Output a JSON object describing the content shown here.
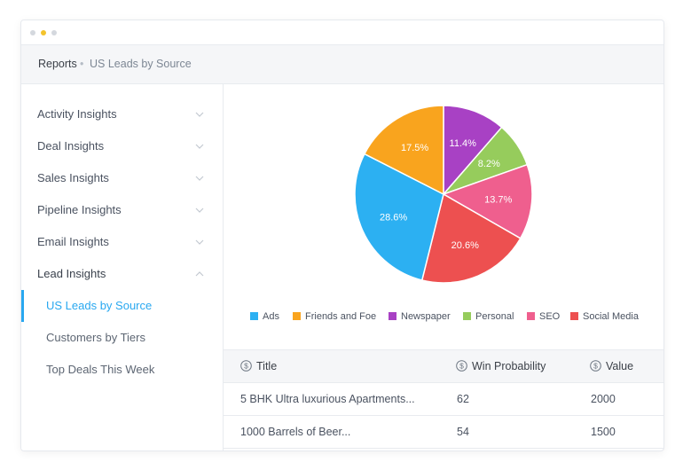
{
  "window": {
    "dot_colors": [
      "#d4d8de",
      "#f3c32c",
      "#d4d8de"
    ]
  },
  "breadcrumb": {
    "root": "Reports",
    "separator": "•",
    "current": "US Leads by Source"
  },
  "sidebar": {
    "items": [
      {
        "label": "Activity Insights",
        "expanded": false
      },
      {
        "label": "Deal Insights",
        "expanded": false
      },
      {
        "label": "Sales Insights",
        "expanded": false
      },
      {
        "label": "Pipeline Insights",
        "expanded": false
      },
      {
        "label": "Email Insights",
        "expanded": false
      },
      {
        "label": "Lead Insights",
        "expanded": true
      }
    ],
    "subitems": [
      {
        "label": "US Leads by Source",
        "active": true
      },
      {
        "label": "Customers by Tiers",
        "active": false
      },
      {
        "label": "Top Deals This Week",
        "active": false
      }
    ],
    "active_color": "#29a8f0"
  },
  "chart_data": {
    "type": "pie",
    "title": "",
    "slices": [
      {
        "label": "Newspaper",
        "value": 11.4,
        "color": "#a841c4"
      },
      {
        "label": "Personal",
        "value": 8.2,
        "color": "#96cc5c"
      },
      {
        "label": "SEO",
        "value": 13.7,
        "color": "#ef5f8e"
      },
      {
        "label": "Social Media",
        "value": 20.6,
        "color": "#ed5050"
      },
      {
        "label": "Ads",
        "value": 28.6,
        "color": "#2cb0f2"
      },
      {
        "label": "Friends and Foe",
        "value": 17.5,
        "color": "#f9a41e"
      }
    ],
    "legend": {
      "position": "bottom",
      "order": [
        "Ads",
        "Friends and Foe",
        "Newspaper",
        "Personal",
        "SEO",
        "Social Media"
      ]
    }
  },
  "table": {
    "columns": [
      {
        "label": "Title",
        "icon": "dollar-circle-icon"
      },
      {
        "label": "Win Probability",
        "icon": "dollar-circle-icon"
      },
      {
        "label": "Value",
        "icon": "dollar-circle-icon"
      }
    ],
    "rows": [
      {
        "title": "5 BHK Ultra luxurious Apartments...",
        "win_probability": "62",
        "value": "2000"
      },
      {
        "title": "1000 Barrels of Beer...",
        "win_probability": "54",
        "value": "1500"
      }
    ]
  }
}
